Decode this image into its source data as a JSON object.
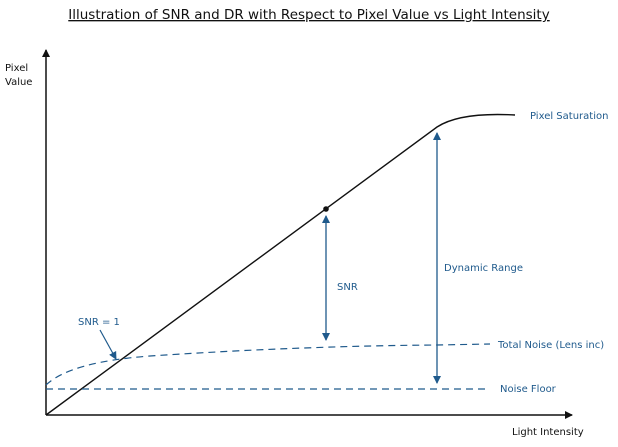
{
  "title": "Illustration of SNR and DR with Respect to Pixel Value vs Light Intensity",
  "y_axis_label": [
    "Pixel",
    "Value"
  ],
  "x_axis_label": "Light Intensity",
  "labels": {
    "pixel_saturation": "Pixel Saturation",
    "dynamic_range": "Dynamic Range",
    "snr": "SNR",
    "snr_equals_1": "SNR = 1",
    "total_noise": "Total Noise (Lens inc)",
    "noise_floor": "Noise Floor"
  }
}
